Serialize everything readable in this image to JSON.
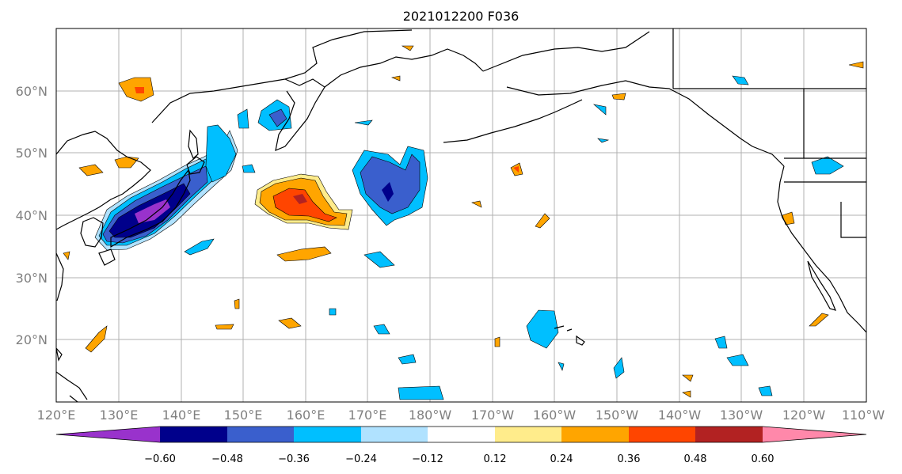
{
  "title": "2021012200 F036",
  "lat_labels": [
    "60°N",
    "50°N",
    "40°N",
    "30°N",
    "20°N"
  ],
  "lon_labels": [
    "120°E",
    "130°E",
    "140°E",
    "150°E",
    "160°E",
    "170°E",
    "180°W",
    "170°W",
    "160°W",
    "150°W",
    "140°W",
    "130°W",
    "120°W",
    "110°W"
  ],
  "colorbar": {
    "ticks": [
      "−0.60",
      "−0.48",
      "−0.36",
      "−0.24",
      "−0.12",
      "0.12",
      "0.24",
      "0.36",
      "0.48",
      "0.60"
    ],
    "colors": [
      "#9932cc",
      "#00008b",
      "#3a5fcd",
      "#00bfff",
      "#b0e2ff",
      "#ffffff",
      "#ffec8b",
      "#ffa500",
      "#ff4500",
      "#b22222",
      "#ff88aa"
    ]
  }
}
